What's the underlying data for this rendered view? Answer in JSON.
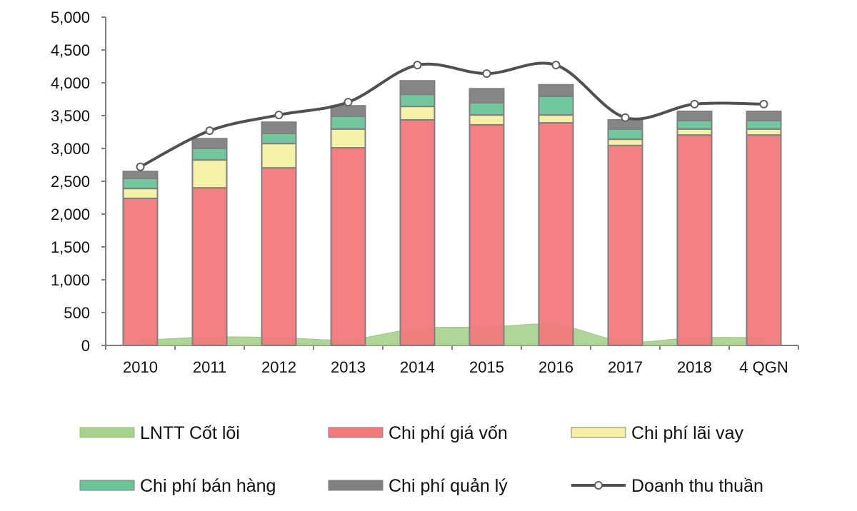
{
  "chart_data": {
    "type": "bar",
    "stacked": true,
    "categories": [
      "2010",
      "2011",
      "2012",
      "2013",
      "2014",
      "2015",
      "2016",
      "2017",
      "2018",
      "4 QGN"
    ],
    "ylim": [
      0,
      5000
    ],
    "yticks": [
      "0",
      "500",
      "1,000",
      "1,500",
      "2,000",
      "2,500",
      "3,000",
      "3,500",
      "4,000",
      "4,500",
      "5,000"
    ],
    "grid": false,
    "legend_position": "bottom",
    "series": [
      {
        "name": "LNTT  Cốt lõi",
        "type": "area",
        "color": "#a9d18e",
        "values": [
          75,
          130,
          120,
          90,
          260,
          280,
          315,
          60,
          120,
          120
        ]
      },
      {
        "name": "Chi phí giá vốn",
        "type": "bar",
        "color": "#f27a7d",
        "values": [
          2240,
          2400,
          2705,
          3010,
          3435,
          3360,
          3390,
          3045,
          3205,
          3205
        ]
      },
      {
        "name": "Chi phí lãi vay",
        "type": "bar",
        "color": "#f5f0a3",
        "values": [
          150,
          425,
          370,
          285,
          205,
          150,
          120,
          95,
          90,
          90
        ]
      },
      {
        "name": "Chi phí bán hàng",
        "type": "bar",
        "color": "#6cc49a",
        "values": [
          155,
          175,
          155,
          195,
          185,
          185,
          285,
          155,
          130,
          130
        ]
      },
      {
        "name": "Chi phí quản lý",
        "type": "bar",
        "color": "#808080",
        "values": [
          105,
          150,
          170,
          160,
          205,
          215,
          175,
          140,
          140,
          140
        ]
      },
      {
        "name": "Doanh thu thuần",
        "type": "line",
        "color": "#505050",
        "values": [
          2720,
          3270,
          3510,
          3705,
          4270,
          4140,
          4270,
          3470,
          3675,
          3675
        ]
      }
    ]
  }
}
